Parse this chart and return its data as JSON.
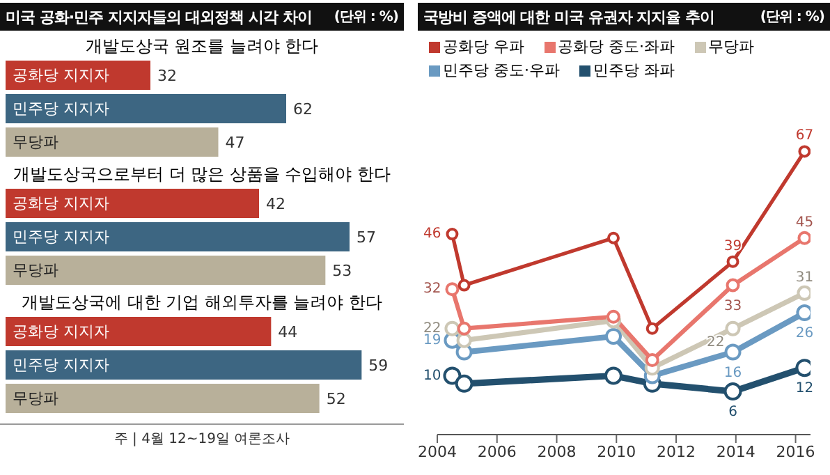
{
  "chart_data": [
    {
      "type": "bar",
      "orientation": "horizontal",
      "title": "미국 공화·민주 지지자들의 대외정책 시각 차이",
      "annotations": [
        "(단위 : %)"
      ],
      "subtitle": "개발도상국 원조를 늘려야 한다",
      "categories": [
        "공화당 지지자",
        "민주당 지지자",
        "무당파"
      ],
      "values": [
        32,
        62,
        47
      ],
      "colors": [
        "#c0392e",
        "#3d6682",
        "#b8b09a"
      ],
      "data_labels": true
    },
    {
      "type": "bar",
      "orientation": "horizontal",
      "subtitle": "개발도상국으로부터 더 많은 상품을 수입해야 한다",
      "categories": [
        "공화당 지지자",
        "민주당 지지자",
        "무당파"
      ],
      "values": [
        42,
        57,
        53
      ],
      "colors": [
        "#c0392e",
        "#3d6682",
        "#b8b09a"
      ],
      "data_labels": true
    },
    {
      "type": "bar",
      "orientation": "horizontal",
      "subtitle": "개발도상국에 대한 기업 해외투자를 늘려야 한다",
      "categories": [
        "공화당 지지자",
        "민주당 지지자",
        "무당파"
      ],
      "values": [
        44,
        59,
        52
      ],
      "colors": [
        "#c0392e",
        "#3d6682",
        "#b8b09a"
      ],
      "data_labels": true,
      "annotations": [
        "주 | 4월 12~19일 여론조사"
      ]
    },
    {
      "type": "line",
      "title": "국방비 증액에 대한 미국 유권자 지지율 추이",
      "annotations": [
        "(단위 : %)"
      ],
      "x": [
        2004.5,
        2004.9,
        2009.9,
        2011.2,
        2013.9,
        2016.3
      ],
      "xlim": [
        2004,
        2016.5
      ],
      "xticks": [
        2004,
        2006,
        2008,
        2010,
        2012,
        2014,
        2016
      ],
      "tick_labels": "x",
      "legend": "top left",
      "marker": "circle",
      "line_style": "solid",
      "series": [
        {
          "name": "공화당 우파",
          "color": "#c0392e",
          "values": [
            46,
            33,
            45,
            22,
            39,
            67
          ],
          "value_labels": [
            "46",
            null,
            null,
            null,
            "39",
            "67"
          ]
        },
        {
          "name": "공화당 중도·좌파",
          "color": "#e8766d",
          "values": [
            32,
            22,
            25,
            14,
            33,
            45
          ],
          "value_labels": [
            "32",
            null,
            null,
            null,
            "33",
            "45"
          ]
        },
        {
          "name": "무당파",
          "color": "#cdc7b5",
          "values": [
            22,
            19,
            24,
            12,
            22,
            31
          ],
          "value_labels": [
            "22",
            null,
            null,
            null,
            "22",
            "31"
          ]
        },
        {
          "name": "민주당 중도·우파",
          "color": "#6a9ac2",
          "values": [
            19,
            16,
            20,
            10,
            16,
            26
          ],
          "value_labels": [
            "19",
            null,
            null,
            null,
            "16",
            "26"
          ]
        },
        {
          "name": "민주당 좌파",
          "color": "#23506e",
          "values": [
            10,
            8,
            10,
            8,
            6,
            12
          ],
          "value_labels": [
            "10",
            null,
            null,
            null,
            "6",
            "12"
          ]
        }
      ]
    }
  ]
}
